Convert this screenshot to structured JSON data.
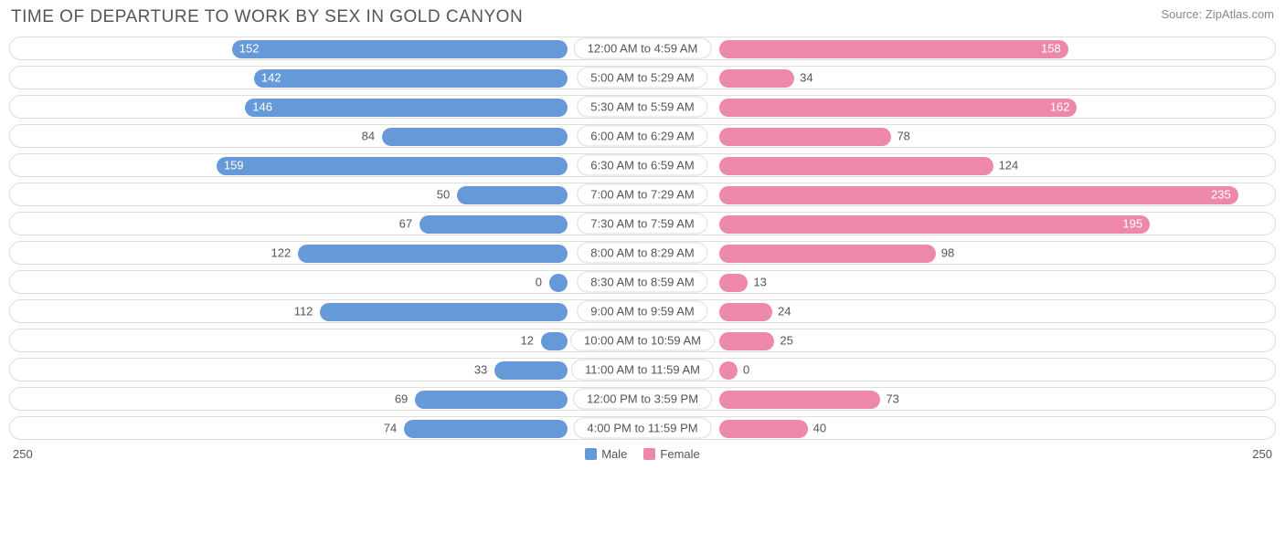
{
  "chart": {
    "type": "diverging-bar",
    "title": "TIME OF DEPARTURE TO WORK BY SEX IN GOLD CANYON",
    "source": "Source: ZipAtlas.com",
    "axis_max": 250,
    "axis_left_label": "250",
    "axis_right_label": "250",
    "center_label_gap_half": 83,
    "inside_label_threshold": 140,
    "colors": {
      "male": "#6699d8",
      "female": "#ee88aa",
      "track_border": "#dddddd",
      "track_bg": "#ffffff",
      "text": "#555555",
      "text_light": "#888888",
      "inside_label": "#ffffff",
      "background": "#ffffff"
    },
    "typography": {
      "title_fontsize": 19,
      "label_fontsize": 13,
      "source_fontsize": 13
    },
    "legend": [
      {
        "label": "Male",
        "color": "#6699d8"
      },
      {
        "label": "Female",
        "color": "#ee88aa"
      }
    ],
    "rows": [
      {
        "category": "12:00 AM to 4:59 AM",
        "male": 152,
        "female": 158
      },
      {
        "category": "5:00 AM to 5:29 AM",
        "male": 142,
        "female": 34
      },
      {
        "category": "5:30 AM to 5:59 AM",
        "male": 146,
        "female": 162
      },
      {
        "category": "6:00 AM to 6:29 AM",
        "male": 84,
        "female": 78
      },
      {
        "category": "6:30 AM to 6:59 AM",
        "male": 159,
        "female": 124
      },
      {
        "category": "7:00 AM to 7:29 AM",
        "male": 50,
        "female": 235
      },
      {
        "category": "7:30 AM to 7:59 AM",
        "male": 67,
        "female": 195
      },
      {
        "category": "8:00 AM to 8:29 AM",
        "male": 122,
        "female": 98
      },
      {
        "category": "8:30 AM to 8:59 AM",
        "male": 0,
        "female": 13
      },
      {
        "category": "9:00 AM to 9:59 AM",
        "male": 112,
        "female": 24
      },
      {
        "category": "10:00 AM to 10:59 AM",
        "male": 12,
        "female": 25
      },
      {
        "category": "11:00 AM to 11:59 AM",
        "male": 33,
        "female": 0
      },
      {
        "category": "12:00 PM to 3:59 PM",
        "male": 69,
        "female": 73
      },
      {
        "category": "4:00 PM to 11:59 PM",
        "male": 74,
        "female": 40
      }
    ]
  }
}
